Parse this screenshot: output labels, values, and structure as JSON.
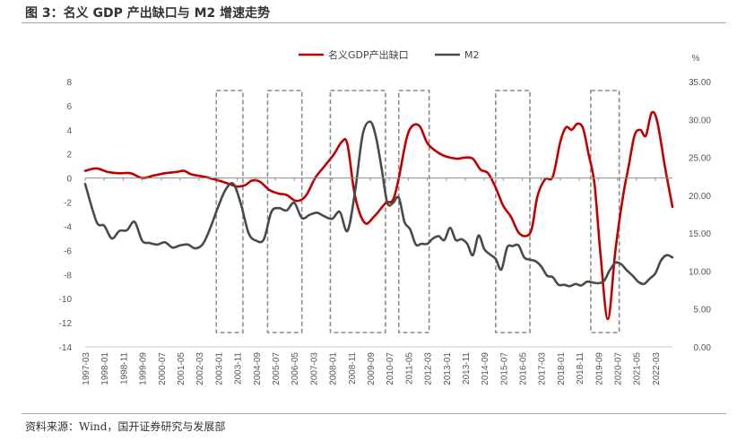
{
  "title": "图 3：名义 GDP 产出缺口与 M2 增速走势",
  "source": "资料来源：Wind，国开证券研究与发展部",
  "chart_data": {
    "type": "line",
    "title": "图 3：名义 GDP 产出缺口与 M2 增速走势",
    "xlabel": "",
    "ylabel_left": "",
    "ylabel_right": "%",
    "left_axis": {
      "min": -14,
      "max": 8,
      "step": 2,
      "ticks": [
        "8",
        "6",
        "4",
        "2",
        "0",
        "-2",
        "-4",
        "-6",
        "-8",
        "-10",
        "-12",
        "-14"
      ]
    },
    "right_axis": {
      "min": 0,
      "max": 35,
      "step": 5,
      "ticks": [
        "35.00",
        "30.00",
        "25.00",
        "20.00",
        "15.00",
        "10.00",
        "5.00",
        "0.00"
      ]
    },
    "x_start": "1997-03",
    "x_end": "2022-12",
    "x_ticks": [
      "1997-03",
      "1998-01",
      "1998-11",
      "1999-09",
      "2000-07",
      "2001-05",
      "2002-03",
      "2003-01",
      "2003-11",
      "2004-09",
      "2005-07",
      "2006-05",
      "2007-03",
      "2008-01",
      "2008-11",
      "2009-09",
      "2010-07",
      "2011-05",
      "2012-03",
      "2013-01",
      "2013-11",
      "2014-09",
      "2015-07",
      "2016-05",
      "2017-03",
      "2018-01",
      "2018-11",
      "2019-09",
      "2020-07",
      "2021-05",
      "2022-03"
    ],
    "legend_position": "top-center",
    "grid": false,
    "series": [
      {
        "name": "名义GDP产出缺口",
        "axis": "left",
        "color": "#c00000",
        "x": [
          "1997-03",
          "1997-09",
          "1998-03",
          "1998-09",
          "1999-03",
          "1999-09",
          "2000-03",
          "2000-09",
          "2001-03",
          "2001-07",
          "2001-11",
          "2002-06",
          "2003-01",
          "2003-07",
          "2003-11",
          "2004-03",
          "2004-07",
          "2004-11",
          "2005-04",
          "2005-09",
          "2006-01",
          "2006-06",
          "2006-11",
          "2007-04",
          "2007-09",
          "2008-02",
          "2008-06",
          "2008-09",
          "2009-01",
          "2009-06",
          "2009-11",
          "2010-05",
          "2010-09",
          "2010-12",
          "2011-04",
          "2011-07",
          "2011-11",
          "2012-03",
          "2012-07",
          "2012-11",
          "2013-03",
          "2013-07",
          "2013-11",
          "2014-03",
          "2014-07",
          "2014-11",
          "2015-03",
          "2015-07",
          "2015-11",
          "2016-03",
          "2016-07",
          "2016-10",
          "2017-01",
          "2017-05",
          "2017-09",
          "2018-01",
          "2018-04",
          "2018-07",
          "2018-10",
          "2019-01",
          "2019-04",
          "2019-07",
          "2019-10",
          "2020-02",
          "2020-06",
          "2020-10",
          "2021-01",
          "2021-04",
          "2021-07",
          "2021-10",
          "2022-01",
          "2022-04",
          "2022-08",
          "2022-12"
        ],
        "values": [
          0.6,
          0.8,
          0.5,
          0.4,
          0.4,
          0.0,
          0.2,
          0.4,
          0.5,
          0.6,
          0.3,
          0.1,
          -0.2,
          -0.5,
          -0.7,
          -0.6,
          -0.2,
          -0.3,
          -1.0,
          -1.3,
          -1.4,
          -1.9,
          -1.5,
          0.0,
          1.0,
          2.0,
          3.0,
          2.8,
          -1.5,
          -3.7,
          -3.2,
          -2.1,
          -1.8,
          0.0,
          3.2,
          4.3,
          4.3,
          2.9,
          2.3,
          1.9,
          1.7,
          1.6,
          1.7,
          1.6,
          0.7,
          0.4,
          -0.8,
          -2.3,
          -3.2,
          -4.5,
          -4.8,
          -4.2,
          -1.5,
          -0.1,
          0.1,
          3.0,
          4.2,
          4.0,
          4.5,
          4.1,
          1.9,
          -0.5,
          -6.0,
          -11.7,
          -6.0,
          -1.5,
          1.0,
          3.5,
          4.0,
          3.5,
          5.4,
          4.7,
          1.0,
          -2.4
        ]
      },
      {
        "name": "M2",
        "axis": "right",
        "color": "#4a4a4a",
        "x": [
          "1997-03",
          "1997-09",
          "1998-01",
          "1998-05",
          "1998-09",
          "1999-01",
          "1999-05",
          "1999-09",
          "2000-01",
          "2000-05",
          "2000-09",
          "2001-01",
          "2001-05",
          "2001-09",
          "2002-01",
          "2002-05",
          "2002-09",
          "2003-01",
          "2003-05",
          "2003-09",
          "2004-01",
          "2004-05",
          "2004-09",
          "2005-01",
          "2005-05",
          "2005-09",
          "2006-01",
          "2006-05",
          "2006-09",
          "2007-01",
          "2007-05",
          "2007-09",
          "2008-01",
          "2008-05",
          "2008-09",
          "2009-01",
          "2009-05",
          "2009-09",
          "2009-12",
          "2010-03",
          "2010-06",
          "2010-09",
          "2010-12",
          "2011-03",
          "2011-06",
          "2011-09",
          "2011-12",
          "2012-03",
          "2012-06",
          "2012-09",
          "2012-12",
          "2013-03",
          "2013-06",
          "2013-09",
          "2013-12",
          "2014-03",
          "2014-06",
          "2014-09",
          "2014-12",
          "2015-03",
          "2015-06",
          "2015-09",
          "2015-12",
          "2016-03",
          "2016-06",
          "2016-09",
          "2016-12",
          "2017-03",
          "2017-06",
          "2017-09",
          "2017-12",
          "2018-03",
          "2018-06",
          "2018-09",
          "2018-12",
          "2019-03",
          "2019-06",
          "2019-09",
          "2019-12",
          "2020-03",
          "2020-06",
          "2020-09",
          "2020-12",
          "2021-03",
          "2021-06",
          "2021-09",
          "2021-12",
          "2022-03",
          "2022-06",
          "2022-09",
          "2022-12"
        ],
        "values": [
          21.5,
          16.5,
          16.0,
          14.3,
          15.3,
          15.4,
          16.5,
          14.0,
          13.7,
          13.5,
          13.8,
          13.1,
          13.4,
          13.5,
          13.0,
          13.6,
          15.8,
          18.5,
          20.8,
          21.5,
          18.8,
          15.0,
          14.0,
          14.2,
          17.8,
          18.3,
          18.0,
          19.0,
          17.0,
          17.4,
          17.7,
          17.2,
          16.9,
          17.8,
          15.3,
          20.5,
          28.0,
          29.7,
          27.7,
          23.5,
          19.0,
          19.0,
          19.7,
          16.5,
          15.5,
          13.5,
          13.6,
          13.6,
          14.3,
          14.6,
          14.1,
          15.7,
          14.1,
          14.2,
          13.6,
          12.1,
          14.7,
          12.9,
          12.2,
          11.6,
          10.2,
          13.1,
          13.3,
          13.4,
          11.8,
          11.5,
          11.3,
          10.6,
          9.4,
          9.2,
          8.2,
          8.2,
          8.0,
          8.3,
          8.1,
          8.6,
          8.5,
          8.4,
          8.7,
          10.1,
          11.1,
          10.9,
          10.1,
          9.4,
          8.6,
          8.3,
          9.0,
          9.7,
          11.4,
          12.1,
          11.8
        ]
      }
    ],
    "boxes": [
      {
        "from": "2002-12",
        "to": "2004-02"
      },
      {
        "from": "2005-03",
        "to": "2006-09"
      },
      {
        "from": "2007-12",
        "to": "2010-05"
      },
      {
        "from": "2010-12",
        "to": "2012-04"
      },
      {
        "from": "2015-03",
        "to": "2016-09"
      },
      {
        "from": "2019-05",
        "to": "2020-08"
      }
    ]
  }
}
